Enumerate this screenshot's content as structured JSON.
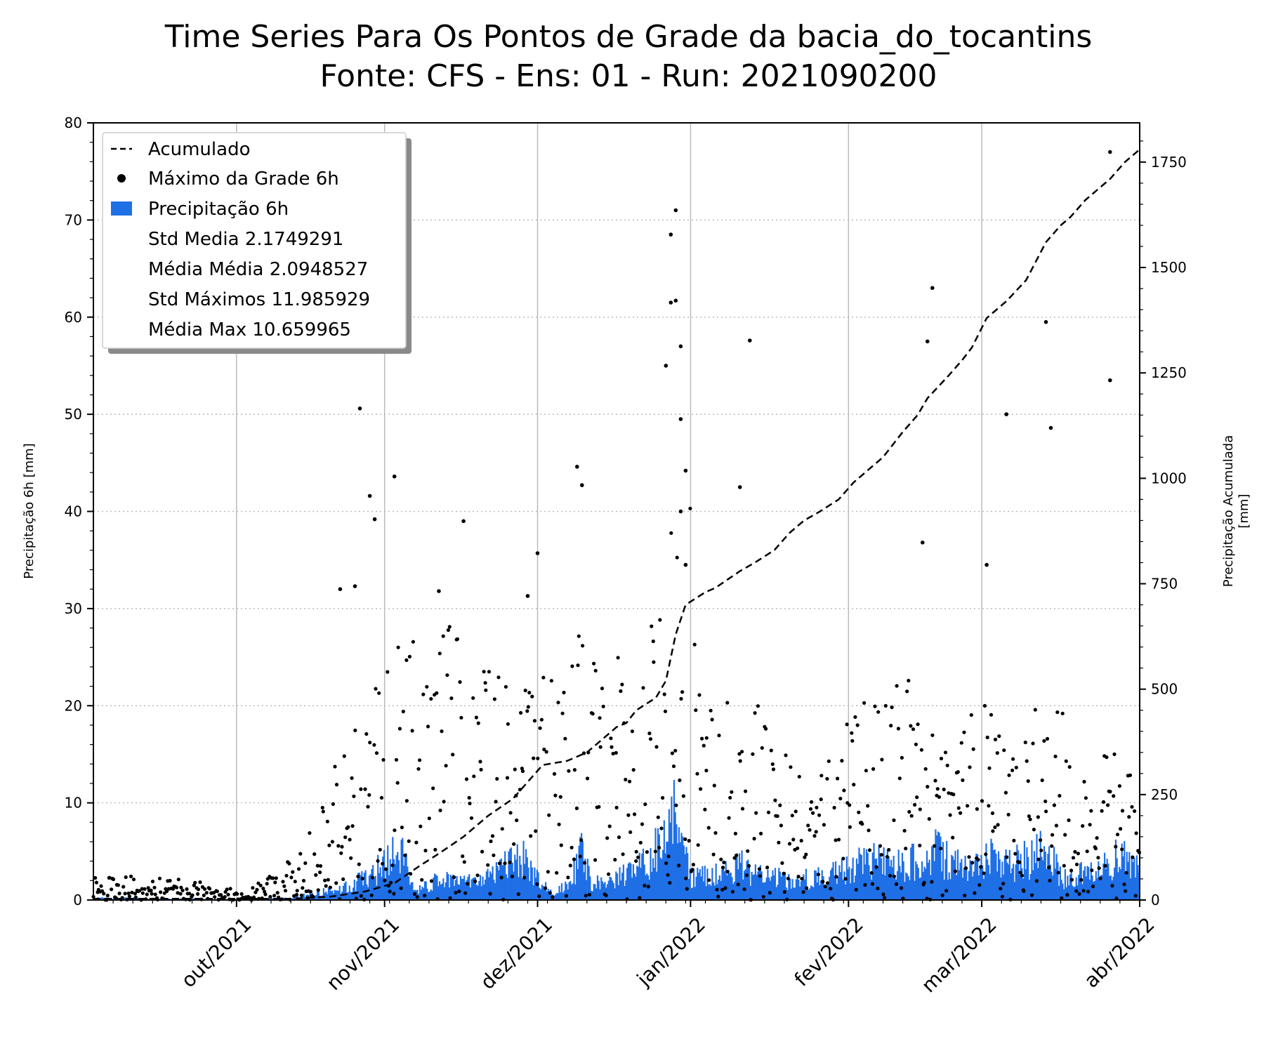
{
  "chart_data": {
    "type": "bar",
    "title_line1": "Time Series Para Os Pontos de Grade da bacia_do_tocantins",
    "title_line2": "Fonte: CFS - Ens: 01 - Run: 2021090200",
    "ylabel_left": "Precipitação 6h [mm]",
    "ylabel_right_line1": "Precipitação Acumulada",
    "ylabel_right_line2": "[mm]",
    "ylim_left": [
      0,
      80
    ],
    "ylim_right": [
      0,
      1843
    ],
    "yticks_left": [
      "0",
      "10",
      "20",
      "30",
      "40",
      "50",
      "60",
      "70",
      "80"
    ],
    "yticks_right": [
      "0",
      "250",
      "500",
      "750",
      "1000",
      "1250",
      "1500",
      "1750"
    ],
    "x_range_days": [
      0,
      212
    ],
    "x_ticks": [
      {
        "label": "out/2021",
        "day": 29
      },
      {
        "label": "nov/2021",
        "day": 59
      },
      {
        "label": "dez/2021",
        "day": 90
      },
      {
        "label": "jan/2022",
        "day": 121
      },
      {
        "label": "fev/2022",
        "day": 153
      },
      {
        "label": "mar/2022",
        "day": 180
      },
      {
        "label": "abr/2022",
        "day": 212
      }
    ],
    "grid": true,
    "legend_position": "top-left",
    "legend": [
      {
        "key": "acumulado",
        "label": "Acumulado"
      },
      {
        "key": "maximo",
        "label": "Máximo da Grade 6h"
      },
      {
        "key": "precip",
        "label": "Precipitação 6h"
      },
      {
        "key": "std_media",
        "label": "Std Media 2.1749291"
      },
      {
        "key": "media_media",
        "label": "Média Média 2.0948527"
      },
      {
        "key": "std_max",
        "label": "Std Máximos 11.985929"
      },
      {
        "key": "media_max",
        "label": "Média Max 10.659965"
      }
    ],
    "colors": {
      "bars": "#1f6fe6",
      "line": "#000000",
      "dots": "#000000",
      "grid_x": "#bbbbbb",
      "grid_y": "#bbbbbb"
    },
    "series": [
      {
        "name": "Acumulado",
        "axis": "right",
        "style": "dashed-line",
        "points": [
          [
            0,
            3
          ],
          [
            20,
            3
          ],
          [
            40,
            3
          ],
          [
            48,
            8
          ],
          [
            55,
            20
          ],
          [
            61,
            40
          ],
          [
            66,
            80
          ],
          [
            70,
            110
          ],
          [
            75,
            150
          ],
          [
            80,
            200
          ],
          [
            85,
            240
          ],
          [
            88,
            280
          ],
          [
            91,
            320
          ],
          [
            96,
            330
          ],
          [
            100,
            350
          ],
          [
            102,
            370
          ],
          [
            106,
            410
          ],
          [
            108,
            420
          ],
          [
            110,
            450
          ],
          [
            114,
            480
          ],
          [
            116,
            520
          ],
          [
            118,
            630
          ],
          [
            120,
            700
          ],
          [
            124,
            730
          ],
          [
            126,
            740
          ],
          [
            131,
            780
          ],
          [
            134,
            800
          ],
          [
            138,
            830
          ],
          [
            141,
            870
          ],
          [
            144,
            900
          ],
          [
            147,
            920
          ],
          [
            151,
            950
          ],
          [
            154,
            990
          ],
          [
            157,
            1020
          ],
          [
            160,
            1050
          ],
          [
            164,
            1110
          ],
          [
            167,
            1150
          ],
          [
            169,
            1190
          ],
          [
            173,
            1240
          ],
          [
            176,
            1280
          ],
          [
            178,
            1310
          ],
          [
            181,
            1380
          ],
          [
            185,
            1420
          ],
          [
            189,
            1470
          ],
          [
            193,
            1560
          ],
          [
            196,
            1600
          ],
          [
            198,
            1620
          ],
          [
            201,
            1660
          ],
          [
            203,
            1680
          ],
          [
            206,
            1710
          ],
          [
            209,
            1750
          ],
          [
            212,
            1780
          ]
        ]
      },
      {
        "name": "Máximo da Grade 6h",
        "axis": "left",
        "style": "dots",
        "generated_from": "pseudo-random seed 20210902, envelope below",
        "count_per_day": 4,
        "envelope": [
          [
            0,
            3
          ],
          [
            20,
            2
          ],
          [
            30,
            1
          ],
          [
            38,
            3
          ],
          [
            45,
            8
          ],
          [
            50,
            16
          ],
          [
            55,
            20
          ],
          [
            60,
            25
          ],
          [
            65,
            30
          ],
          [
            75,
            28
          ],
          [
            85,
            22
          ],
          [
            95,
            25
          ],
          [
            100,
            30
          ],
          [
            110,
            22
          ],
          [
            115,
            32
          ],
          [
            120,
            55
          ],
          [
            123,
            20
          ],
          [
            128,
            22
          ],
          [
            135,
            20
          ],
          [
            145,
            12
          ],
          [
            150,
            15
          ],
          [
            155,
            22
          ],
          [
            160,
            20
          ],
          [
            165,
            25
          ],
          [
            170,
            18
          ],
          [
            175,
            16
          ],
          [
            180,
            22
          ],
          [
            185,
            15
          ],
          [
            190,
            20
          ],
          [
            195,
            22
          ],
          [
            200,
            14
          ],
          [
            205,
            18
          ],
          [
            212,
            12
          ]
        ],
        "highlighted": [
          [
            54,
            50.6
          ],
          [
            56,
            41.6
          ],
          [
            61,
            43.6
          ],
          [
            53,
            32.3
          ],
          [
            50,
            32
          ],
          [
            57,
            39.2
          ],
          [
            98,
            44.6
          ],
          [
            99,
            42.7
          ],
          [
            118,
            71
          ],
          [
            117,
            68.5
          ],
          [
            117,
            61.5
          ],
          [
            118,
            61.7
          ],
          [
            119,
            57
          ],
          [
            116,
            55
          ],
          [
            119,
            49.5
          ],
          [
            120,
            44.2
          ],
          [
            119,
            40
          ],
          [
            131,
            42.5
          ],
          [
            133,
            57.6
          ],
          [
            170,
            63
          ],
          [
            169,
            57.5
          ],
          [
            185,
            50
          ],
          [
            193,
            59.5
          ],
          [
            194,
            48.6
          ],
          [
            206,
            77
          ],
          [
            206,
            53.5
          ],
          [
            90,
            35.7
          ],
          [
            88,
            31.3
          ],
          [
            75,
            39
          ],
          [
            70,
            31.8
          ],
          [
            120,
            34.5
          ],
          [
            168,
            36.8
          ],
          [
            181,
            34.5
          ]
        ]
      },
      {
        "name": "Precipitação 6h",
        "axis": "left",
        "style": "bars",
        "generated_from": "pseudo-random seed 10042022, envelope below",
        "bars_per_day": 4,
        "envelope": [
          [
            0,
            0.3
          ],
          [
            30,
            0.1
          ],
          [
            40,
            0.3
          ],
          [
            45,
            1
          ],
          [
            50,
            1.5
          ],
          [
            55,
            3
          ],
          [
            59,
            5
          ],
          [
            62,
            7
          ],
          [
            65,
            1
          ],
          [
            70,
            3
          ],
          [
            75,
            2.5
          ],
          [
            80,
            3
          ],
          [
            84,
            5
          ],
          [
            87,
            6
          ],
          [
            90,
            3
          ],
          [
            93,
            1
          ],
          [
            96,
            2
          ],
          [
            99,
            7
          ],
          [
            101,
            2
          ],
          [
            104,
            3
          ],
          [
            108,
            4
          ],
          [
            112,
            5
          ],
          [
            115,
            8
          ],
          [
            118,
            12
          ],
          [
            121,
            3
          ],
          [
            126,
            3.5
          ],
          [
            131,
            5
          ],
          [
            134,
            3.5
          ],
          [
            140,
            3
          ],
          [
            146,
            3
          ],
          [
            151,
            4
          ],
          [
            155,
            5
          ],
          [
            158,
            5.5
          ],
          [
            162,
            5
          ],
          [
            166,
            5.5
          ],
          [
            170,
            7
          ],
          [
            174,
            5
          ],
          [
            178,
            5
          ],
          [
            182,
            6
          ],
          [
            186,
            5
          ],
          [
            190,
            6
          ],
          [
            193,
            7
          ],
          [
            196,
            3
          ],
          [
            200,
            4
          ],
          [
            205,
            5
          ],
          [
            208,
            6
          ],
          [
            212,
            4
          ]
        ]
      }
    ]
  }
}
